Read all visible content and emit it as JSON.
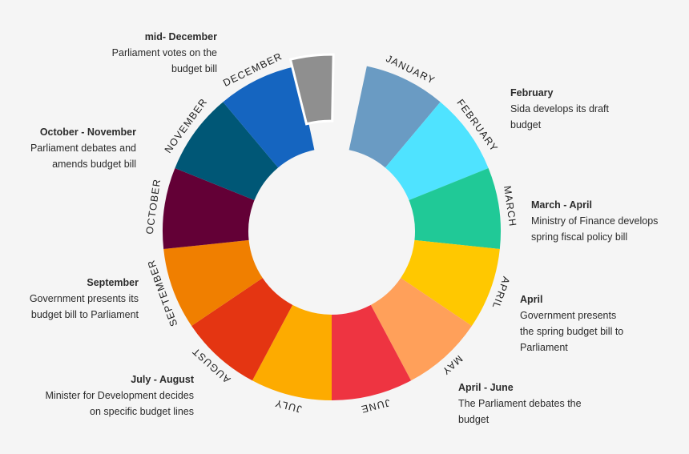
{
  "months": [
    {
      "label": "JANUARY",
      "color": "#6a9bc3"
    },
    {
      "label": "FEBRUARY",
      "color": "#4fe3ff"
    },
    {
      "label": "MARCH",
      "color": "#20c997"
    },
    {
      "label": "APRIL",
      "color": "#ffc800"
    },
    {
      "label": "MAY",
      "color": "#ffa05a"
    },
    {
      "label": "JUNE",
      "color": "#ee3441"
    },
    {
      "label": "JULY",
      "color": "#fdab00"
    },
    {
      "label": "AUGUST",
      "color": "#e43512"
    },
    {
      "label": "SEPTEMBER",
      "color": "#f07f00"
    },
    {
      "label": "OCTOBER",
      "color": "#630036"
    },
    {
      "label": "NOVEMBER",
      "color": "#005776"
    },
    {
      "label": "DECEMBER",
      "color": "#1565c0"
    }
  ],
  "gap_color": "#8f8f8f",
  "annotations": {
    "mid_december": {
      "heading": "mid- December",
      "text": "Parliament votes on the\nbudget bill"
    },
    "oct_nov": {
      "heading": "October - November",
      "text": "Parliament debates and\namends budget bill"
    },
    "september": {
      "heading": "September",
      "text": "Government presents its\nbudget bill to Parliament"
    },
    "july_august": {
      "heading": "July -  August",
      "text": "Minister for Development decides\non specific budget lines"
    },
    "february": {
      "heading": "February",
      "text": "Sida develops its draft\nbudget"
    },
    "march_april": {
      "heading": "March - April",
      "text": "Ministry of Finance develops\nspring fiscal policy bill"
    },
    "april": {
      "heading": "April",
      "text": "Government presents\nthe spring budget bill to\nParliament"
    },
    "april_june": {
      "heading": "April - June",
      "text": "The Parliament debates the\nbudget"
    }
  }
}
